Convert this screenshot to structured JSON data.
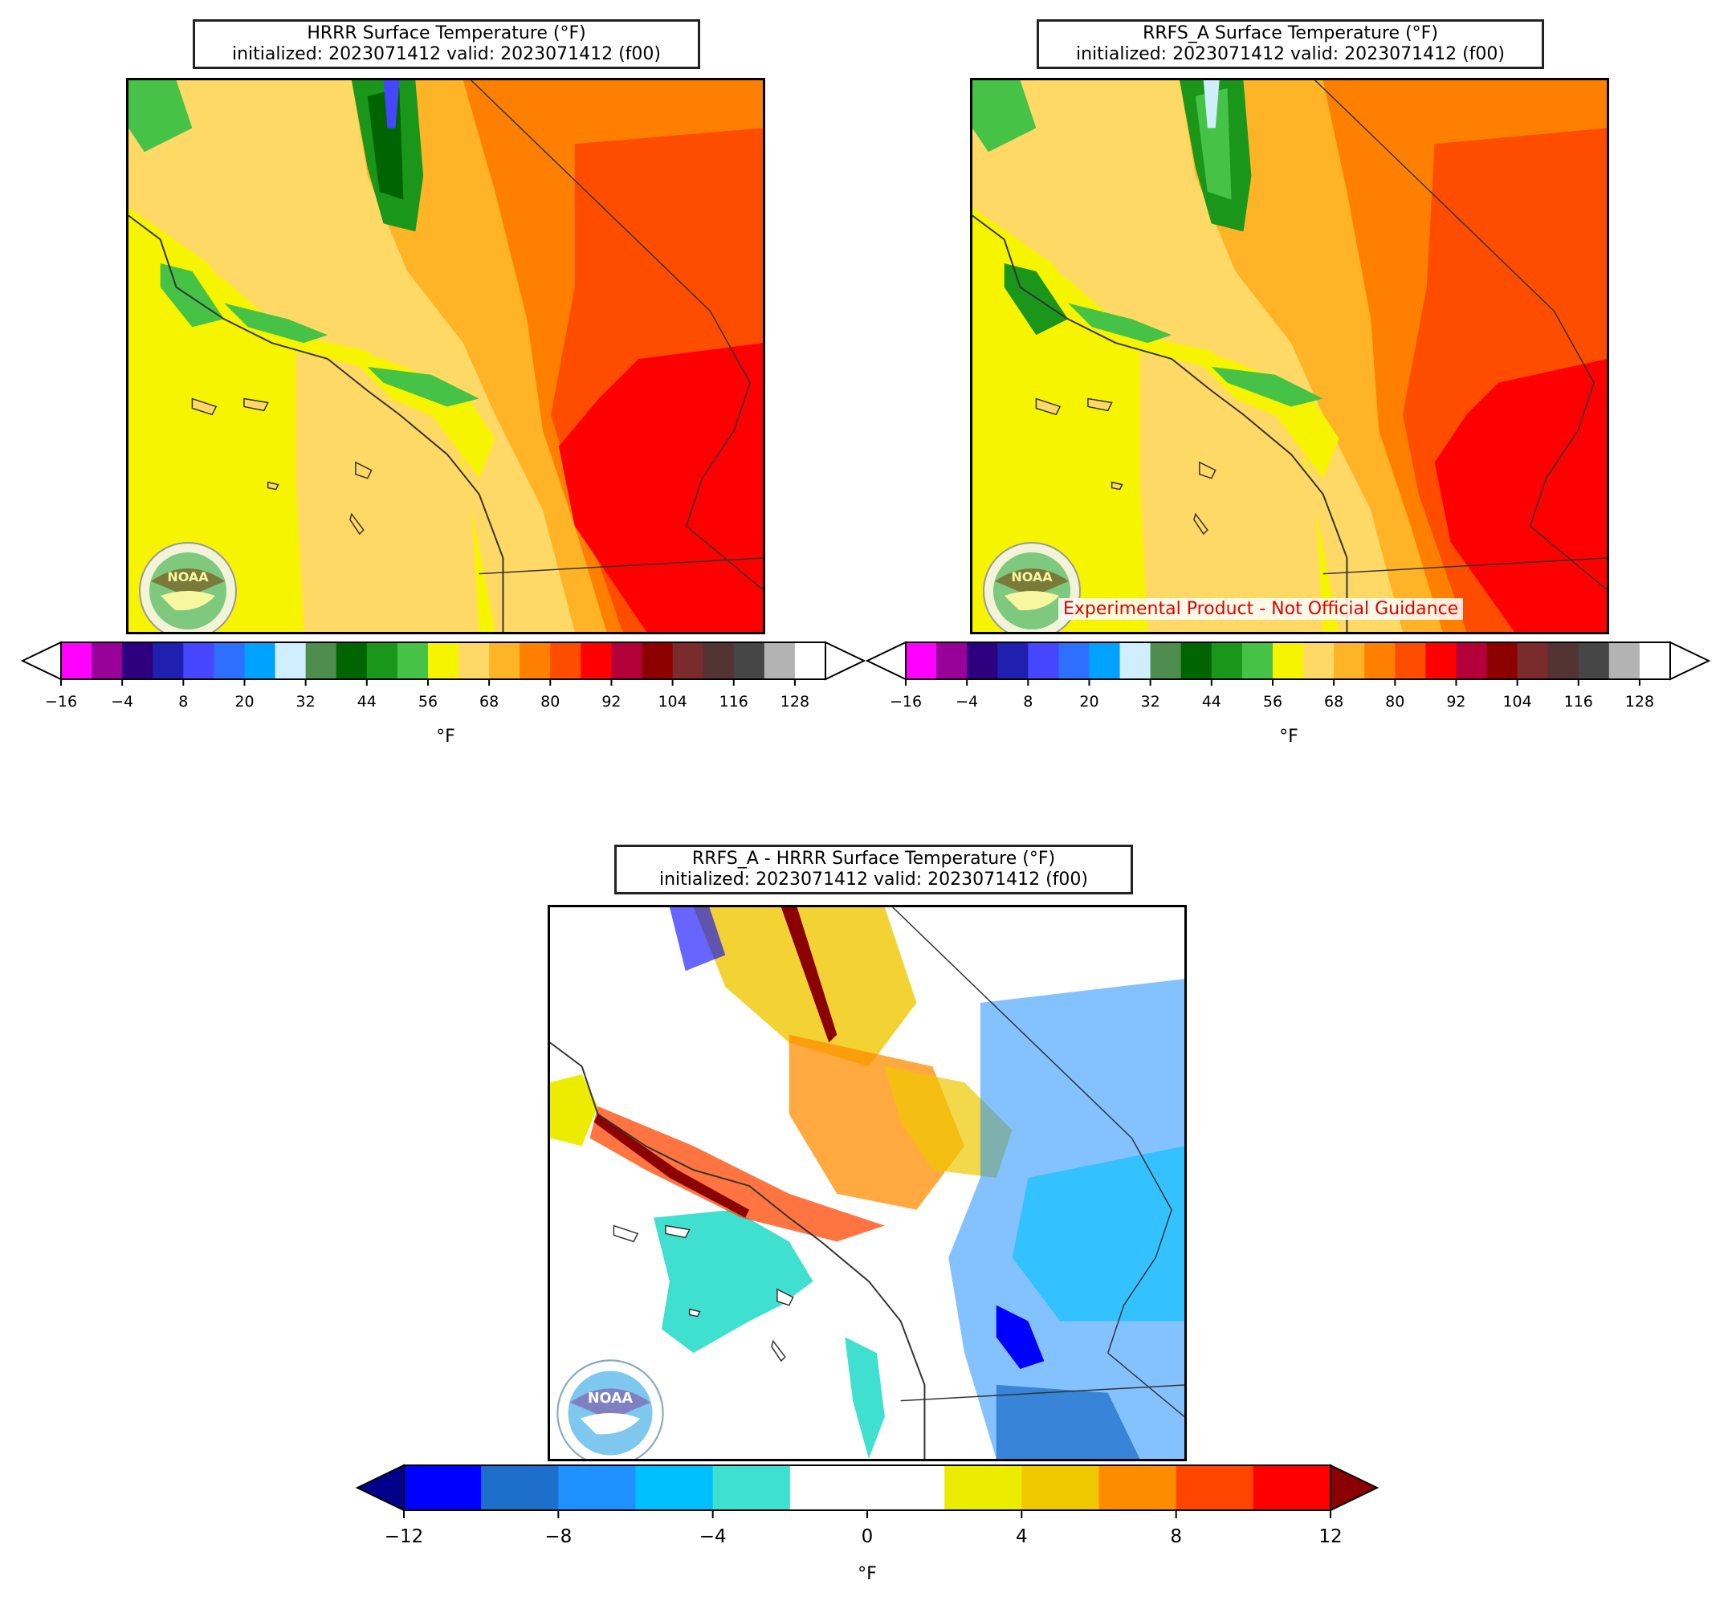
{
  "panels": {
    "hrrr": {
      "title_line1": "HRRR Surface Temperature (°F)",
      "title_line2": "initialized: 2023071412 valid: 2023071412 (f00)"
    },
    "rrfs": {
      "title_line1": "RRFS_A Surface Temperature (°F)",
      "title_line2": "initialized: 2023071412 valid: 2023071412 (f00)",
      "watermark": "Experimental Product - Not Official Guidance"
    },
    "diff": {
      "title_line1": "RRFS_A - HRRR Surface Temperature (°F)",
      "title_line2": "initialized: 2023071412 valid: 2023071412 (f00)"
    }
  },
  "logo_text": "NOAA",
  "temp_colorbar": {
    "unit": "°F",
    "ticks": [
      "−16",
      "−4",
      "8",
      "20",
      "32",
      "44",
      "56",
      "68",
      "80",
      "92",
      "104",
      "116",
      "128"
    ],
    "colors": [
      "#ff00ff",
      "#990099",
      "#2e007f",
      "#1f1fb0",
      "#4646ff",
      "#2f6fff",
      "#00a2ff",
      "#cfeeff",
      "#4d8c4d",
      "#006400",
      "#1a961a",
      "#46c346",
      "#f7f400",
      "#ffd966",
      "#ffb326",
      "#ff8000",
      "#ff4d00",
      "#ff0000",
      "#b3003b",
      "#8c0000",
      "#7a2b2b",
      "#543333",
      "#464646",
      "#b3b3b3",
      "#ffffff"
    ]
  },
  "diff_colorbar": {
    "unit": "°F",
    "ticks": [
      "−12",
      "−8",
      "−4",
      "0",
      "4",
      "8",
      "12"
    ],
    "under_color": "#00008b",
    "over_color": "#8b0000",
    "colors": [
      "#0000ff",
      "#1e6fcc",
      "#1e90ff",
      "#00bfff",
      "#40e0d0",
      "#ffffff",
      "#ffffff",
      "#ecec00",
      "#f0c800",
      "#ff8c00",
      "#ff4500",
      "#ff0000"
    ]
  }
}
